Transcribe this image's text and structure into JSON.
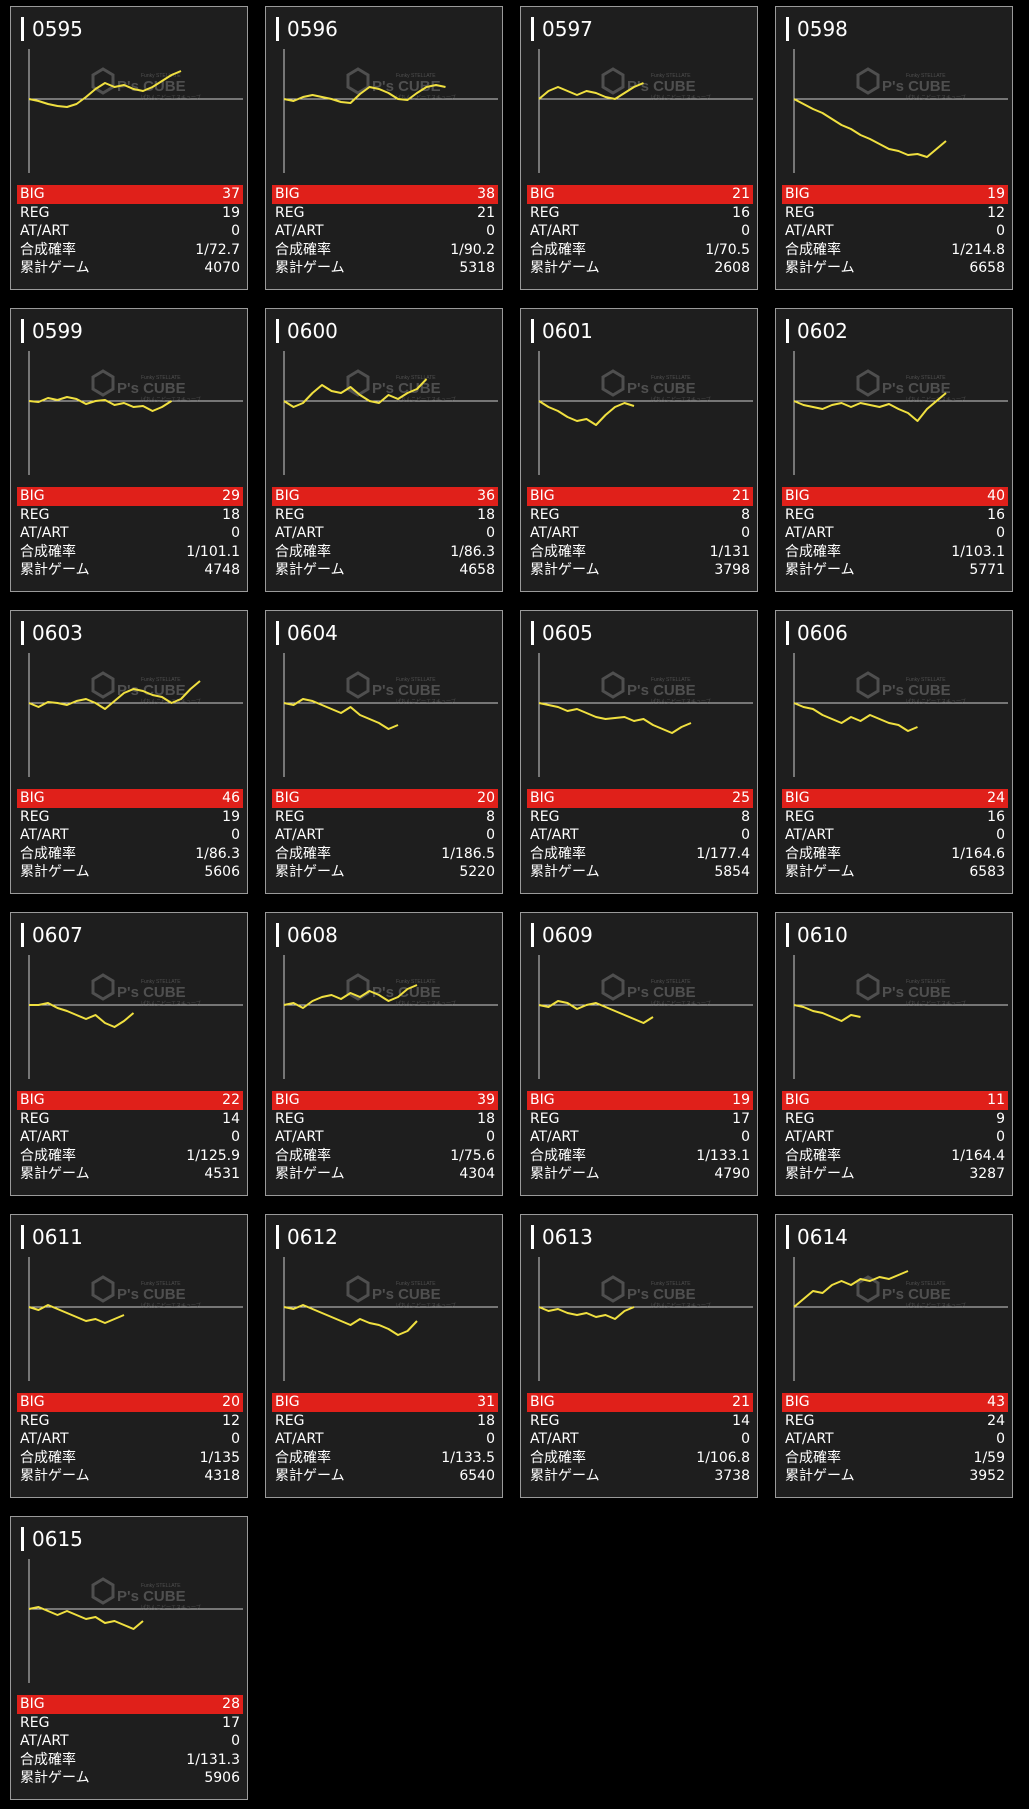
{
  "labels": {
    "big": "BIG",
    "reg": "REG",
    "at": "AT/ART",
    "prob": "合成確率",
    "games": "累計ゲーム"
  },
  "watermark": {
    "top": "Funky STELLATE",
    "brand": "P's CUBE",
    "sub": "ぱちんこピーエスキューブ"
  },
  "colors": {
    "line": "#f0e040",
    "big_bar": "#e0201a",
    "card_bg": "#1e1e1e"
  },
  "machines": [
    {
      "id": "0595",
      "big": "37",
      "reg": "19",
      "at": "0",
      "prob": "1/72.7",
      "games": "4070",
      "trend": [
        0,
        -2,
        -5,
        -7,
        -8,
        -5,
        2,
        10,
        16,
        12,
        14,
        10,
        8,
        12,
        18,
        24,
        28
      ]
    },
    {
      "id": "0596",
      "big": "38",
      "reg": "21",
      "at": "0",
      "prob": "1/90.2",
      "games": "5318",
      "trend": [
        0,
        -2,
        2,
        4,
        2,
        0,
        -3,
        -4,
        5,
        12,
        10,
        6,
        0,
        -1,
        6,
        12,
        14,
        12
      ]
    },
    {
      "id": "0597",
      "big": "21",
      "reg": "16",
      "at": "0",
      "prob": "1/70.5",
      "games": "2608",
      "trend": [
        0,
        8,
        12,
        8,
        4,
        8,
        6,
        2,
        0,
        6,
        12,
        16
      ]
    },
    {
      "id": "0598",
      "big": "19",
      "reg": "12",
      "at": "0",
      "prob": "1/214.8",
      "games": "6658",
      "trend": [
        0,
        -5,
        -10,
        -14,
        -20,
        -26,
        -30,
        -36,
        -40,
        -45,
        -50,
        -52,
        -56,
        -55,
        -58,
        -50,
        -42
      ]
    },
    {
      "id": "0599",
      "big": "29",
      "reg": "18",
      "at": "0",
      "prob": "1/101.1",
      "games": "4748",
      "trend": [
        0,
        -1,
        3,
        1,
        4,
        2,
        -3,
        0,
        1,
        -4,
        -2,
        -6,
        -5,
        -10,
        -6,
        0
      ]
    },
    {
      "id": "0600",
      "big": "36",
      "reg": "18",
      "at": "0",
      "prob": "1/86.3",
      "games": "4658",
      "trend": [
        0,
        -6,
        -2,
        8,
        16,
        10,
        8,
        14,
        6,
        0,
        -2,
        6,
        2,
        8,
        12,
        22
      ]
    },
    {
      "id": "0601",
      "big": "21",
      "reg": "8",
      "at": "0",
      "prob": "1/131",
      "games": "3798",
      "trend": [
        0,
        -6,
        -10,
        -16,
        -20,
        -18,
        -24,
        -14,
        -6,
        -2,
        -5
      ]
    },
    {
      "id": "0602",
      "big": "40",
      "reg": "16",
      "at": "0",
      "prob": "1/103.1",
      "games": "5771",
      "trend": [
        0,
        -4,
        -6,
        -8,
        -4,
        -2,
        -6,
        -2,
        -4,
        -6,
        -3,
        -8,
        -12,
        -20,
        -8,
        0,
        8
      ]
    },
    {
      "id": "0603",
      "big": "46",
      "reg": "19",
      "at": "0",
      "prob": "1/86.3",
      "games": "5606",
      "trend": [
        0,
        -4,
        1,
        0,
        -2,
        2,
        4,
        0,
        -6,
        2,
        10,
        14,
        12,
        8,
        6,
        0,
        4,
        14,
        22
      ]
    },
    {
      "id": "0604",
      "big": "20",
      "reg": "8",
      "at": "0",
      "prob": "1/186.5",
      "games": "5220",
      "trend": [
        0,
        -2,
        4,
        2,
        -2,
        -6,
        -10,
        -4,
        -12,
        -16,
        -20,
        -26,
        -22
      ]
    },
    {
      "id": "0605",
      "big": "25",
      "reg": "8",
      "at": "0",
      "prob": "1/177.4",
      "games": "5854",
      "trend": [
        0,
        -2,
        -4,
        -8,
        -6,
        -10,
        -14,
        -16,
        -15,
        -14,
        -18,
        -16,
        -22,
        -26,
        -30,
        -24,
        -20
      ]
    },
    {
      "id": "0606",
      "big": "24",
      "reg": "16",
      "at": "0",
      "prob": "1/164.6",
      "games": "6583",
      "trend": [
        0,
        -4,
        -6,
        -12,
        -16,
        -20,
        -14,
        -18,
        -12,
        -16,
        -20,
        -22,
        -28,
        -24
      ]
    },
    {
      "id": "0607",
      "big": "22",
      "reg": "14",
      "at": "0",
      "prob": "1/125.9",
      "games": "4531",
      "trend": [
        0,
        0,
        2,
        -3,
        -6,
        -10,
        -14,
        -10,
        -18,
        -22,
        -16,
        -8
      ]
    },
    {
      "id": "0608",
      "big": "39",
      "reg": "18",
      "at": "0",
      "prob": "1/75.6",
      "games": "4304",
      "trend": [
        0,
        2,
        -3,
        4,
        8,
        10,
        6,
        12,
        8,
        14,
        10,
        4,
        8,
        16,
        20
      ]
    },
    {
      "id": "0609",
      "big": "19",
      "reg": "17",
      "at": "0",
      "prob": "1/133.1",
      "games": "4790",
      "trend": [
        0,
        -2,
        4,
        2,
        -4,
        0,
        2,
        -2,
        -6,
        -10,
        -14,
        -18,
        -12
      ]
    },
    {
      "id": "0610",
      "big": "11",
      "reg": "9",
      "at": "0",
      "prob": "1/164.4",
      "games": "3287",
      "trend": [
        0,
        -2,
        -6,
        -8,
        -12,
        -16,
        -10,
        -12
      ]
    },
    {
      "id": "0611",
      "big": "20",
      "reg": "12",
      "at": "0",
      "prob": "1/135",
      "games": "4318",
      "trend": [
        0,
        -3,
        2,
        -2,
        -6,
        -10,
        -14,
        -12,
        -16,
        -12,
        -8
      ]
    },
    {
      "id": "0612",
      "big": "31",
      "reg": "18",
      "at": "0",
      "prob": "1/133.5",
      "games": "6540",
      "trend": [
        0,
        -2,
        2,
        -2,
        -6,
        -10,
        -14,
        -18,
        -12,
        -16,
        -18,
        -22,
        -28,
        -24,
        -14
      ]
    },
    {
      "id": "0613",
      "big": "21",
      "reg": "14",
      "at": "0",
      "prob": "1/106.8",
      "games": "3738",
      "trend": [
        0,
        -4,
        -2,
        -6,
        -8,
        -6,
        -10,
        -8,
        -12,
        -4,
        0
      ]
    },
    {
      "id": "0614",
      "big": "43",
      "reg": "24",
      "at": "0",
      "prob": "1/59",
      "games": "3952",
      "trend": [
        0,
        8,
        16,
        14,
        22,
        26,
        22,
        28,
        26,
        30,
        28,
        32,
        36
      ]
    },
    {
      "id": "0615",
      "big": "28",
      "reg": "17",
      "at": "0",
      "prob": "1/131.3",
      "games": "5906",
      "trend": [
        0,
        2,
        -2,
        -6,
        -2,
        -6,
        -10,
        -8,
        -14,
        -12,
        -16,
        -20,
        -12
      ]
    }
  ]
}
